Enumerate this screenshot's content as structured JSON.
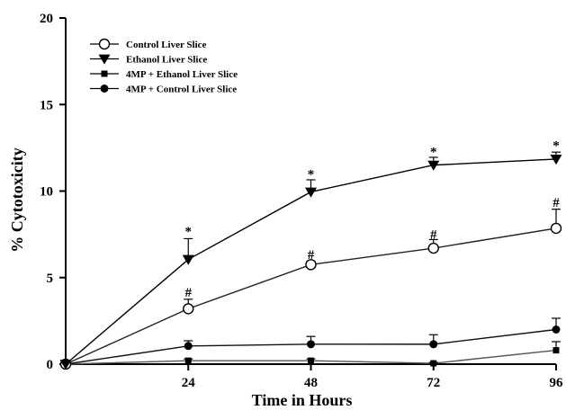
{
  "chart_data": {
    "type": "line",
    "xlabel": "Time in Hours",
    "ylabel": "% Cytotoxicity",
    "x": [
      0,
      24,
      48,
      72,
      96
    ],
    "xticks": [
      24,
      48,
      72,
      96
    ],
    "yticks": [
      0,
      5,
      10,
      15,
      20
    ],
    "xlim": [
      0,
      96
    ],
    "ylim": [
      0,
      20
    ],
    "grid": false,
    "legend_position": "top-left",
    "series": [
      {
        "name": "Control Liver Slice",
        "marker": "open-circle",
        "values": [
          0,
          3.2,
          5.75,
          6.7,
          7.85
        ],
        "errors": [
          0,
          0.55,
          0.2,
          0.5,
          1.1
        ]
      },
      {
        "name": "Ethanol Liver Slice",
        "marker": "down-triangle",
        "values": [
          0,
          6.05,
          9.95,
          11.5,
          11.85
        ],
        "errors": [
          0,
          1.2,
          0.7,
          0.45,
          0.4
        ]
      },
      {
        "name": "4MP + Ethanol Liver Slice",
        "marker": "square",
        "values": [
          0,
          0.2,
          0.2,
          0.05,
          0.8
        ],
        "errors": [
          0,
          0.1,
          0.1,
          0.05,
          0.5
        ]
      },
      {
        "name": "4MP + Control Liver Slice",
        "marker": "filled-circle",
        "values": [
          0,
          1.05,
          1.15,
          1.15,
          2.0
        ],
        "errors": [
          0,
          0.3,
          0.45,
          0.55,
          0.65
        ]
      }
    ],
    "annotations": [
      {
        "text": "*",
        "x": 24,
        "y": 7.75
      },
      {
        "text": "*",
        "x": 48,
        "y": 11.05
      },
      {
        "text": "*",
        "x": 72,
        "y": 12.35
      },
      {
        "text": "*",
        "x": 96,
        "y": 12.7
      },
      {
        "text": "#",
        "x": 24,
        "y": 4.2
      },
      {
        "text": "#",
        "x": 48,
        "y": 6.4
      },
      {
        "text": "#",
        "x": 72,
        "y": 7.55
      },
      {
        "text": "#",
        "x": 96,
        "y": 9.4
      }
    ]
  }
}
